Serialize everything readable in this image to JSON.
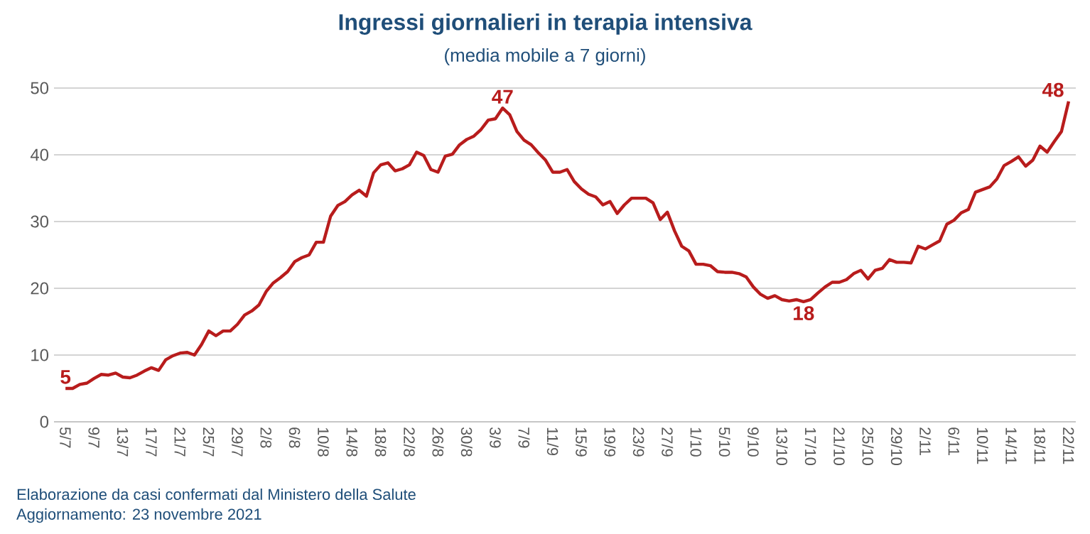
{
  "chart_data": {
    "type": "line",
    "title": "Ingressi giornalieri in terapia intensiva",
    "subtitle": "(media mobile a 7 giorni)",
    "annotations": [
      "Elaborazione da casi confermati dal Ministero della Salute",
      "Aggiornamento: 23 novembre 2021"
    ],
    "categories": [
      "5/7",
      null,
      null,
      null,
      "9/7",
      null,
      null,
      null,
      "13/7",
      null,
      null,
      null,
      "17/7",
      null,
      null,
      null,
      "21/7",
      null,
      null,
      null,
      "25/7",
      null,
      null,
      null,
      "29/7",
      null,
      null,
      null,
      "2/8",
      null,
      null,
      null,
      "6/8",
      null,
      null,
      null,
      "10/8",
      null,
      null,
      null,
      "14/8",
      null,
      null,
      null,
      "18/8",
      null,
      null,
      null,
      "22/8",
      null,
      null,
      null,
      "26/8",
      null,
      null,
      null,
      "30/8",
      null,
      null,
      null,
      "3/9",
      null,
      null,
      null,
      "7/9",
      null,
      null,
      null,
      "11/9",
      null,
      null,
      null,
      "15/9",
      null,
      null,
      null,
      "19/9",
      null,
      null,
      null,
      "23/9",
      null,
      null,
      null,
      "27/9",
      null,
      null,
      null,
      "1/10",
      null,
      null,
      null,
      "5/10",
      null,
      null,
      null,
      "9/10",
      null,
      null,
      null,
      "13/10",
      null,
      null,
      null,
      "17/10",
      null,
      null,
      null,
      "21/10",
      null,
      null,
      null,
      "25/10",
      null,
      null,
      null,
      "29/10",
      null,
      null,
      null,
      "2/11",
      null,
      null,
      null,
      "6/11",
      null,
      null,
      null,
      "10/11",
      null,
      null,
      null,
      "14/11",
      null,
      null,
      null,
      "18/11",
      null,
      null,
      null,
      "22/11"
    ],
    "values": [
      5,
      5.0,
      5.6,
      5.8,
      6.5,
      7.1,
      7.0,
      7.3,
      6.7,
      6.6,
      7.0,
      7.6,
      8.1,
      7.7,
      9.3,
      9.9,
      10.3,
      10.4,
      10.0,
      11.6,
      13.6,
      12.9,
      13.6,
      13.6,
      14.6,
      16.0,
      16.6,
      17.5,
      19.5,
      20.8,
      21.6,
      22.5,
      24.0,
      24.6,
      25.0,
      26.9,
      26.9,
      30.8,
      32.4,
      33.0,
      34.0,
      34.7,
      33.8,
      37.3,
      38.5,
      38.8,
      37.6,
      37.9,
      38.5,
      40.4,
      39.9,
      37.8,
      37.4,
      39.8,
      40.1,
      41.5,
      42.3,
      42.8,
      43.8,
      45.2,
      45.4,
      47,
      46.0,
      43.5,
      42.2,
      41.5,
      40.3,
      39.2,
      37.4,
      37.4,
      37.8,
      36.0,
      34.9,
      34.1,
      33.7,
      32.5,
      33.0,
      31.2,
      32.5,
      33.5,
      33.5,
      33.5,
      32.8,
      30.3,
      31.4,
      28.6,
      26.3,
      25.6,
      23.6,
      23.6,
      23.4,
      22.5,
      22.4,
      22.4,
      22.2,
      21.7,
      20.2,
      19.1,
      18.5,
      18.9,
      18.3,
      18.1,
      18.3,
      18,
      18.3,
      19.3,
      20.2,
      20.9,
      20.9,
      21.3,
      22.2,
      22.7,
      21.4,
      22.7,
      23.0,
      24.3,
      23.9,
      23.9,
      23.8,
      26.3,
      25.9,
      26.5,
      27.1,
      29.6,
      30.2,
      31.3,
      31.8,
      34.4,
      34.8,
      35.2,
      36.4,
      38.4,
      39.0,
      39.7,
      38.3,
      39.2,
      41.3,
      40.4,
      42.0,
      43.5,
      48
    ],
    "value_labels": [
      "5",
      null,
      null,
      null,
      null,
      null,
      null,
      null,
      null,
      null,
      null,
      null,
      null,
      null,
      null,
      null,
      null,
      null,
      null,
      null,
      null,
      null,
      null,
      null,
      null,
      null,
      null,
      null,
      null,
      null,
      null,
      null,
      null,
      null,
      null,
      null,
      null,
      null,
      null,
      null,
      null,
      null,
      null,
      null,
      null,
      null,
      null,
      null,
      null,
      null,
      null,
      null,
      null,
      null,
      null,
      null,
      null,
      null,
      null,
      null,
      null,
      "47",
      null,
      null,
      null,
      null,
      null,
      null,
      null,
      null,
      null,
      null,
      null,
      null,
      null,
      null,
      null,
      null,
      null,
      null,
      null,
      null,
      null,
      null,
      null,
      null,
      null,
      null,
      null,
      null,
      null,
      null,
      null,
      null,
      null,
      null,
      null,
      null,
      null,
      null,
      null,
      null,
      null,
      "18",
      null,
      null,
      null,
      null,
      null,
      null,
      null,
      null,
      null,
      null,
      null,
      null,
      null,
      null,
      null,
      null,
      null,
      null,
      null,
      null,
      null,
      null,
      null,
      null,
      null,
      null,
      null,
      null,
      null,
      null,
      null,
      null,
      null,
      null,
      null,
      null,
      "48"
    ],
    "color": "#b81c1c",
    "ylim": [
      0,
      50
    ],
    "yticks": [
      0,
      10,
      20,
      30,
      40,
      50
    ],
    "grid": "y"
  }
}
